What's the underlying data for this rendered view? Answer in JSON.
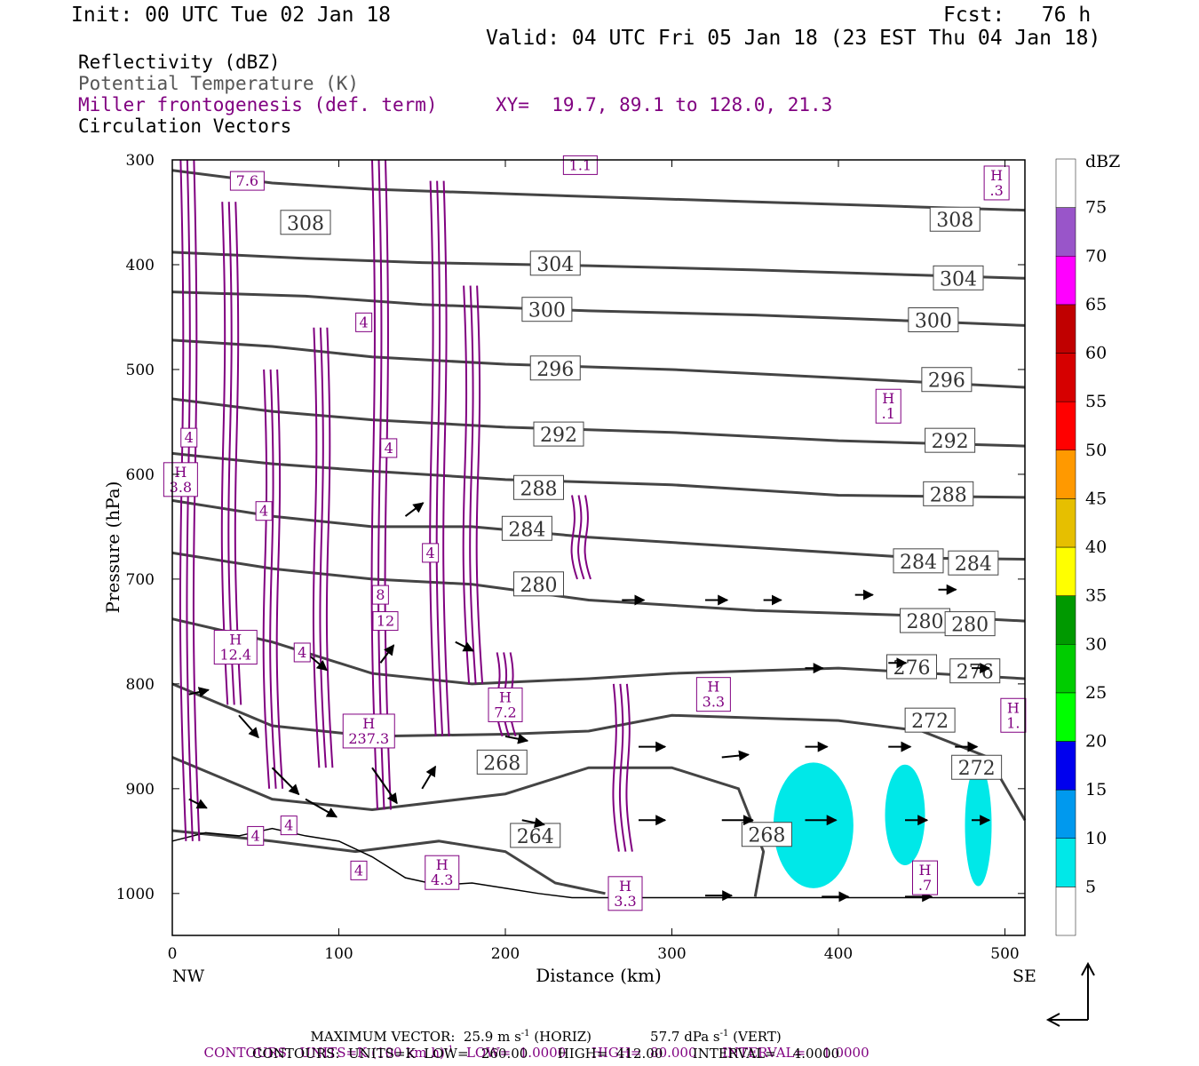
{
  "header": {
    "init": "Init: 00 UTC Tue 02 Jan 18",
    "fcst": "Fcst:   76 h",
    "valid": "Valid: 04 UTC Fri 05 Jan 18 (23 EST Thu 04 Jan 18)"
  },
  "legend": {
    "reflectivity": "Reflectivity (dBZ)",
    "theta": "Potential Temperature (K)",
    "miller": "Miller frontogenesis (def. term)",
    "xy": "XY=  19.7, 89.1 to 128.0, 21.3",
    "vectors": "Circulation Vectors"
  },
  "chart_data": {
    "type": "cross-section",
    "xlabel": "Distance (km)",
    "ylabel": "Pressure (hPa)",
    "xlim": [
      0,
      512
    ],
    "ylim": [
      1040,
      300
    ],
    "x_ticks": [
      "0",
      "100",
      "200",
      "300",
      "400",
      "500"
    ],
    "y_ticks": [
      "300",
      "400",
      "500",
      "600",
      "700",
      "800",
      "900",
      "1000"
    ],
    "x_end_labels": {
      "left": "NW",
      "right": "SE"
    },
    "theta_contours": [
      {
        "label": "308",
        "pts": [
          [
            0,
            310
          ],
          [
            60,
            322
          ],
          [
            120,
            328
          ],
          [
            250,
            335
          ],
          [
            350,
            340
          ],
          [
            450,
            345
          ],
          [
            512,
            348
          ]
        ],
        "labels": [
          [
            80,
            360
          ],
          [
            470,
            357
          ]
        ]
      },
      {
        "label": "304",
        "pts": [
          [
            0,
            388
          ],
          [
            80,
            394
          ],
          [
            150,
            398
          ],
          [
            250,
            401
          ],
          [
            350,
            405
          ],
          [
            450,
            410
          ],
          [
            512,
            413
          ]
        ],
        "labels": [
          [
            230,
            399
          ],
          [
            472,
            413
          ]
        ]
      },
      {
        "label": "300",
        "pts": [
          [
            0,
            426
          ],
          [
            80,
            430
          ],
          [
            150,
            438
          ],
          [
            250,
            444
          ],
          [
            350,
            448
          ],
          [
            450,
            454
          ],
          [
            512,
            458
          ]
        ],
        "labels": [
          [
            225,
            443
          ],
          [
            457,
            453
          ]
        ]
      },
      {
        "label": "296",
        "pts": [
          [
            0,
            472
          ],
          [
            60,
            478
          ],
          [
            120,
            488
          ],
          [
            200,
            495
          ],
          [
            300,
            500
          ],
          [
            400,
            508
          ],
          [
            512,
            517
          ]
        ],
        "labels": [
          [
            230,
            499
          ],
          [
            465,
            510
          ]
        ]
      },
      {
        "label": "292",
        "pts": [
          [
            0,
            528
          ],
          [
            60,
            540
          ],
          [
            120,
            548
          ],
          [
            200,
            555
          ],
          [
            300,
            560
          ],
          [
            400,
            568
          ],
          [
            512,
            573
          ]
        ],
        "labels": [
          [
            232,
            562
          ],
          [
            467,
            568
          ]
        ]
      },
      {
        "label": "288",
        "pts": [
          [
            0,
            580
          ],
          [
            60,
            590
          ],
          [
            120,
            597
          ],
          [
            200,
            605
          ],
          [
            300,
            610
          ],
          [
            400,
            620
          ],
          [
            512,
            622
          ]
        ],
        "labels": [
          [
            220,
            613
          ],
          [
            466,
            619
          ]
        ]
      },
      {
        "label": "284",
        "pts": [
          [
            0,
            625
          ],
          [
            60,
            640
          ],
          [
            120,
            650
          ],
          [
            180,
            650
          ],
          [
            250,
            660
          ],
          [
            350,
            670
          ],
          [
            450,
            680
          ],
          [
            512,
            681
          ]
        ],
        "labels": [
          [
            213,
            652
          ],
          [
            448,
            683
          ],
          [
            481,
            685
          ]
        ]
      },
      {
        "label": "280",
        "pts": [
          [
            0,
            675
          ],
          [
            60,
            690
          ],
          [
            120,
            700
          ],
          [
            180,
            705
          ],
          [
            250,
            720
          ],
          [
            350,
            730
          ],
          [
            450,
            735
          ],
          [
            512,
            740
          ]
        ],
        "labels": [
          [
            220,
            705
          ],
          [
            452,
            740
          ],
          [
            479,
            743
          ]
        ]
      },
      {
        "label": "276",
        "pts": [
          [
            0,
            738
          ],
          [
            60,
            760
          ],
          [
            120,
            790
          ],
          [
            180,
            800
          ],
          [
            250,
            795
          ],
          [
            300,
            790
          ],
          [
            400,
            785
          ],
          [
            512,
            795
          ]
        ],
        "labels": [
          [
            444,
            784
          ],
          [
            482,
            788
          ]
        ]
      },
      {
        "label": "272",
        "pts": [
          [
            0,
            800
          ],
          [
            60,
            840
          ],
          [
            120,
            850
          ],
          [
            200,
            848
          ],
          [
            250,
            845
          ],
          [
            300,
            830
          ],
          [
            400,
            835
          ],
          [
            450,
            845
          ],
          [
            490,
            870
          ],
          [
            512,
            930
          ]
        ],
        "labels": [
          [
            455,
            835
          ],
          [
            483,
            880
          ]
        ]
      },
      {
        "label": "268",
        "pts": [
          [
            0,
            870
          ],
          [
            60,
            910
          ],
          [
            120,
            920
          ],
          [
            200,
            905
          ],
          [
            250,
            880
          ],
          [
            300,
            880
          ],
          [
            340,
            900
          ],
          [
            355,
            960
          ],
          [
            350,
            1003
          ]
        ],
        "labels": [
          [
            198,
            875
          ],
          [
            357,
            944
          ]
        ]
      },
      {
        "label": "264",
        "pts": [
          [
            0,
            940
          ],
          [
            60,
            950
          ],
          [
            110,
            960
          ],
          [
            160,
            950
          ],
          [
            200,
            960
          ],
          [
            230,
            990
          ],
          [
            260,
            1000
          ]
        ],
        "labels": [
          [
            218,
            945
          ]
        ]
      }
    ],
    "dbz_scale": {
      "unit": "dBZ",
      "labels": [
        "5",
        "10",
        "15",
        "20",
        "25",
        "30",
        "35",
        "40",
        "45",
        "50",
        "55",
        "60",
        "65",
        "70",
        "75"
      ],
      "colors": [
        "#ffffff",
        "#00e8e8",
        "#0099ee",
        "#0000ee",
        "#00ff00",
        "#00cc00",
        "#009900",
        "#ffff00",
        "#e6bf00",
        "#ff9900",
        "#ff0000",
        "#d60000",
        "#c00000",
        "#ff00ff",
        "#9955c9",
        "#ffffff"
      ]
    },
    "reflectivity_cells": [
      {
        "cx": 385,
        "cy": 935,
        "rx": 24,
        "ry": 60
      },
      {
        "cx": 440,
        "cy": 925,
        "rx": 12,
        "ry": 48
      },
      {
        "cx": 484,
        "cy": 935,
        "rx": 8,
        "ry": 58
      }
    ],
    "vectors": [
      [
        10,
        810,
        22,
        -5
      ],
      [
        10,
        910,
        20,
        10
      ],
      [
        40,
        830,
        22,
        25
      ],
      [
        60,
        880,
        30,
        30
      ],
      [
        80,
        910,
        35,
        20
      ],
      [
        80,
        770,
        24,
        20
      ],
      [
        120,
        880,
        28,
        40
      ],
      [
        150,
        900,
        15,
        -25
      ],
      [
        125,
        780,
        15,
        -20
      ],
      [
        140,
        640,
        20,
        -15
      ],
      [
        170,
        760,
        20,
        10
      ],
      [
        200,
        850,
        25,
        5
      ],
      [
        210,
        930,
        25,
        5
      ],
      [
        280,
        860,
        30,
        0
      ],
      [
        280,
        930,
        30,
        0
      ],
      [
        270,
        720,
        25,
        0
      ],
      [
        320,
        720,
        25,
        0
      ],
      [
        330,
        870,
        30,
        -3
      ],
      [
        330,
        930,
        35,
        0
      ],
      [
        320,
        1002,
        30,
        0
      ],
      [
        380,
        860,
        25,
        0
      ],
      [
        380,
        930,
        35,
        0
      ],
      [
        390,
        1003,
        30,
        0
      ],
      [
        430,
        860,
        25,
        0
      ],
      [
        440,
        930,
        25,
        0
      ],
      [
        440,
        1003,
        30,
        0
      ],
      [
        470,
        860,
        25,
        0
      ],
      [
        480,
        930,
        20,
        0
      ],
      [
        380,
        785,
        20,
        0
      ],
      [
        430,
        780,
        20,
        0
      ],
      [
        480,
        785,
        20,
        0
      ],
      [
        460,
        710,
        20,
        0
      ],
      [
        410,
        715,
        20,
        0
      ],
      [
        355,
        720,
        20,
        0
      ]
    ],
    "frontogenesis_labels": [
      {
        "x": 45,
        "y": 320,
        "t": "7.6"
      },
      {
        "x": 245,
        "y": 305,
        "t": "1.1"
      },
      {
        "x": 495,
        "y": 322,
        "t": "H\n.3"
      },
      {
        "x": 115,
        "y": 455,
        "t": "4"
      },
      {
        "x": 430,
        "y": 535,
        "t": "H\n.1"
      },
      {
        "x": 10,
        "y": 565,
        "t": "4"
      },
      {
        "x": 130,
        "y": 575,
        "t": "4"
      },
      {
        "x": 5,
        "y": 605,
        "t": "H\n3.8"
      },
      {
        "x": 55,
        "y": 635,
        "t": "4"
      },
      {
        "x": 155,
        "y": 675,
        "t": "4"
      },
      {
        "x": 125,
        "y": 715,
        "t": "8"
      },
      {
        "x": 128,
        "y": 740,
        "t": "12"
      },
      {
        "x": 38,
        "y": 765,
        "t": "H\n12.4"
      },
      {
        "x": 78,
        "y": 770,
        "t": "4"
      },
      {
        "x": 118,
        "y": 845,
        "t": "H\n237.3"
      },
      {
        "x": 200,
        "y": 820,
        "t": "H\n7.2"
      },
      {
        "x": 325,
        "y": 810,
        "t": "H\n3.3"
      },
      {
        "x": 505,
        "y": 830,
        "t": "H\n1."
      },
      {
        "x": 50,
        "y": 945,
        "t": "4"
      },
      {
        "x": 70,
        "y": 935,
        "t": "4"
      },
      {
        "x": 112,
        "y": 978,
        "t": "4"
      },
      {
        "x": 162,
        "y": 980,
        "t": "H\n4.3"
      },
      {
        "x": 272,
        "y": 1000,
        "t": "H\n3.3"
      },
      {
        "x": 452,
        "y": 985,
        "t": "H\n.7"
      }
    ]
  },
  "footer": {
    "maxvec": "MAXIMUM VECTOR:  25.9 m s",
    "maxvec_h": " (HORIZ)",
    "maxvec_v": "57.7 dPa s",
    "maxvec_v2": " (VERT)",
    "contours1": "CONTOURS:  UNITS=K (100 km h)",
    "contours1b": "   LOW=  1.0000      HIGH=  80.000      INTERVAL=    1.0000",
    "contours2": "CONTOURS:  UNITS=K  LOW=   260.00       HIGH=  412.00       INTERVAL=    4.0000"
  }
}
